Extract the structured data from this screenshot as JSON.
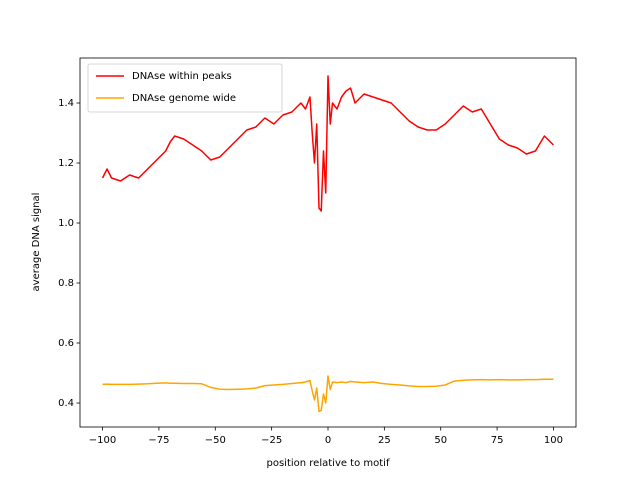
{
  "chart_data": {
    "type": "line",
    "xlabel": "position relative to motif",
    "ylabel": "average DNA signal",
    "x": [
      -100,
      -98,
      -96,
      -92,
      -88,
      -84,
      -80,
      -76,
      -72,
      -70,
      -68,
      -64,
      -60,
      -56,
      -52,
      -48,
      -44,
      -40,
      -36,
      -32,
      -28,
      -24,
      -20,
      -16,
      -12,
      -10,
      -8,
      -7,
      -6,
      -5,
      -4,
      -3,
      -2,
      -1,
      0,
      1,
      2,
      4,
      6,
      8,
      10,
      12,
      16,
      20,
      24,
      28,
      32,
      36,
      40,
      44,
      48,
      52,
      56,
      60,
      64,
      68,
      72,
      76,
      80,
      84,
      88,
      92,
      96,
      100
    ],
    "series": [
      {
        "name": "DNAse within peaks",
        "color": "#ff0000",
        "values": [
          1.15,
          1.18,
          1.15,
          1.14,
          1.16,
          1.15,
          1.18,
          1.21,
          1.24,
          1.27,
          1.29,
          1.28,
          1.26,
          1.24,
          1.21,
          1.22,
          1.25,
          1.28,
          1.31,
          1.32,
          1.35,
          1.33,
          1.36,
          1.37,
          1.4,
          1.38,
          1.42,
          1.3,
          1.2,
          1.33,
          1.05,
          1.04,
          1.24,
          1.1,
          1.49,
          1.33,
          1.4,
          1.38,
          1.42,
          1.44,
          1.45,
          1.4,
          1.43,
          1.42,
          1.41,
          1.4,
          1.37,
          1.34,
          1.32,
          1.31,
          1.31,
          1.33,
          1.36,
          1.39,
          1.37,
          1.38,
          1.33,
          1.28,
          1.26,
          1.25,
          1.23,
          1.24,
          1.29,
          1.26
        ]
      },
      {
        "name": "DNAse genome wide",
        "color": "#ffa500",
        "values": [
          0.462,
          0.463,
          0.462,
          0.462,
          0.462,
          0.463,
          0.464,
          0.466,
          0.467,
          0.466,
          0.466,
          0.465,
          0.465,
          0.464,
          0.452,
          0.446,
          0.445,
          0.446,
          0.447,
          0.45,
          0.458,
          0.46,
          0.462,
          0.465,
          0.468,
          0.47,
          0.475,
          0.44,
          0.41,
          0.45,
          0.372,
          0.375,
          0.43,
          0.4,
          0.49,
          0.445,
          0.47,
          0.468,
          0.47,
          0.468,
          0.472,
          0.47,
          0.468,
          0.47,
          0.465,
          0.462,
          0.46,
          0.457,
          0.455,
          0.455,
          0.456,
          0.46,
          0.473,
          0.476,
          0.477,
          0.478,
          0.477,
          0.478,
          0.477,
          0.477,
          0.478,
          0.478,
          0.479,
          0.479
        ]
      }
    ],
    "xlim": [
      -110,
      110
    ],
    "xticks": [
      {
        "value": -100,
        "label": "−100"
      },
      {
        "value": -75,
        "label": "−75"
      },
      {
        "value": -50,
        "label": "−50"
      },
      {
        "value": -25,
        "label": "−25"
      },
      0,
      25,
      50,
      75,
      100
    ],
    "ylim": [
      0.32,
      1.55
    ],
    "yticks": [
      0.4,
      0.6,
      0.8,
      {
        "value": 1.0,
        "label": "1.0"
      },
      1.2,
      1.4
    ],
    "legend": "upper left"
  }
}
